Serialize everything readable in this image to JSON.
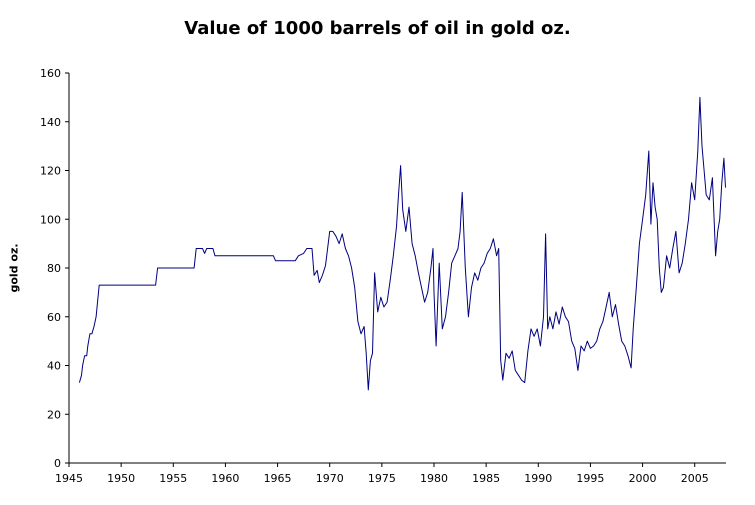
{
  "chart_data": {
    "type": "line",
    "title": "Value of 1000 barrels of oil in gold oz.",
    "xlabel": "",
    "ylabel": "gold oz.",
    "xlim": [
      1945,
      2008
    ],
    "ylim": [
      0,
      160
    ],
    "x_ticks": [
      1945,
      1950,
      1955,
      1960,
      1965,
      1970,
      1975,
      1980,
      1985,
      1990,
      1995,
      2000,
      2005
    ],
    "y_ticks": [
      0,
      20,
      40,
      60,
      80,
      100,
      120,
      140,
      160
    ],
    "grid": false,
    "legend": "none",
    "line_color": "#000080",
    "series": [
      {
        "x": [
          1946.0,
          1946.2,
          1946.3,
          1946.5,
          1946.7,
          1946.8,
          1947.0,
          1947.2,
          1947.4,
          1947.6,
          1947.9,
          1948.0,
          1948.2,
          1953.3,
          1953.5,
          1957.0,
          1957.2,
          1957.8,
          1958.0,
          1958.2,
          1958.8,
          1959.0,
          1959.2,
          1964.6,
          1964.8,
          1966.7,
          1967.0,
          1967.5,
          1967.8,
          1968.3,
          1968.5,
          1968.8,
          1969.0,
          1969.3,
          1969.6,
          1970.0,
          1970.3,
          1970.6,
          1970.9,
          1971.2,
          1971.5,
          1971.8,
          1972.1,
          1972.4,
          1972.7,
          1973.0,
          1973.3,
          1973.5,
          1973.7,
          1973.9,
          1974.1,
          1974.3,
          1974.6,
          1974.9,
          1975.2,
          1975.5,
          1975.8,
          1976.1,
          1976.4,
          1976.6,
          1976.8,
          1977.0,
          1977.3,
          1977.6,
          1977.9,
          1978.2,
          1978.5,
          1978.8,
          1979.1,
          1979.4,
          1979.7,
          1979.9,
          1980.0,
          1980.2,
          1980.5,
          1980.8,
          1981.1,
          1981.4,
          1981.7,
          1982.0,
          1982.3,
          1982.5,
          1982.7,
          1983.0,
          1983.3,
          1983.6,
          1983.9,
          1984.2,
          1984.5,
          1984.8,
          1985.1,
          1985.4,
          1985.7,
          1986.0,
          1986.2,
          1986.4,
          1986.6,
          1986.9,
          1987.2,
          1987.5,
          1987.8,
          1988.1,
          1988.4,
          1988.7,
          1989.0,
          1989.3,
          1989.6,
          1989.9,
          1990.2,
          1990.5,
          1990.7,
          1990.9,
          1991.1,
          1991.4,
          1991.7,
          1992.0,
          1992.3,
          1992.6,
          1992.9,
          1993.2,
          1993.5,
          1993.8,
          1994.1,
          1994.4,
          1994.7,
          1995.0,
          1995.3,
          1995.6,
          1995.9,
          1996.2,
          1996.5,
          1996.8,
          1997.1,
          1997.4,
          1997.7,
          1998.0,
          1998.3,
          1998.6,
          1998.9,
          1999.1,
          1999.4,
          1999.7,
          2000.0,
          2000.3,
          2000.6,
          2000.8,
          2001.0,
          2001.2,
          2001.4,
          2001.6,
          2001.8,
          2002.0,
          2002.3,
          2002.6,
          2002.9,
          2003.2,
          2003.5,
          2003.8,
          2004.1,
          2004.4,
          2004.7,
          2005.0,
          2005.3,
          2005.5,
          2005.7,
          2005.9,
          2006.1,
          2006.4,
          2006.7,
          2007.0,
          2007.2,
          2007.4,
          2007.6,
          2007.8,
          2007.95
        ],
        "values": [
          33,
          36,
          40,
          44,
          44,
          48,
          53,
          53,
          56,
          60,
          73,
          73,
          73,
          73,
          80,
          80,
          88,
          88,
          86,
          88,
          88,
          85,
          85,
          85,
          83,
          83,
          85,
          86,
          88,
          88,
          77,
          79,
          74,
          77,
          81,
          95,
          95,
          93,
          90,
          94,
          88,
          85,
          80,
          72,
          58,
          53,
          56,
          45,
          30,
          42,
          45,
          78,
          62,
          68,
          64,
          66,
          75,
          85,
          97,
          110,
          122,
          104,
          95,
          105,
          90,
          85,
          78,
          72,
          66,
          70,
          80,
          88,
          70,
          48,
          82,
          55,
          60,
          70,
          82,
          85,
          88,
          95,
          111,
          80,
          60,
          72,
          78,
          75,
          80,
          82,
          86,
          88,
          92,
          85,
          88,
          42,
          34,
          45,
          43,
          46,
          38,
          36,
          34,
          33,
          46,
          55,
          52,
          55,
          48,
          60,
          94,
          55,
          60,
          55,
          62,
          57,
          64,
          60,
          58,
          50,
          47,
          38,
          48,
          46,
          50,
          47,
          48,
          50,
          55,
          58,
          64,
          70,
          60,
          65,
          57,
          50,
          48,
          44,
          39,
          55,
          72,
          90,
          100,
          110,
          128,
          98,
          115,
          105,
          100,
          80,
          70,
          72,
          85,
          80,
          88,
          95,
          78,
          82,
          90,
          100,
          115,
          108,
          128,
          150,
          130,
          120,
          110,
          108,
          117,
          85,
          95,
          100,
          115,
          125,
          113
        ]
      }
    ]
  }
}
